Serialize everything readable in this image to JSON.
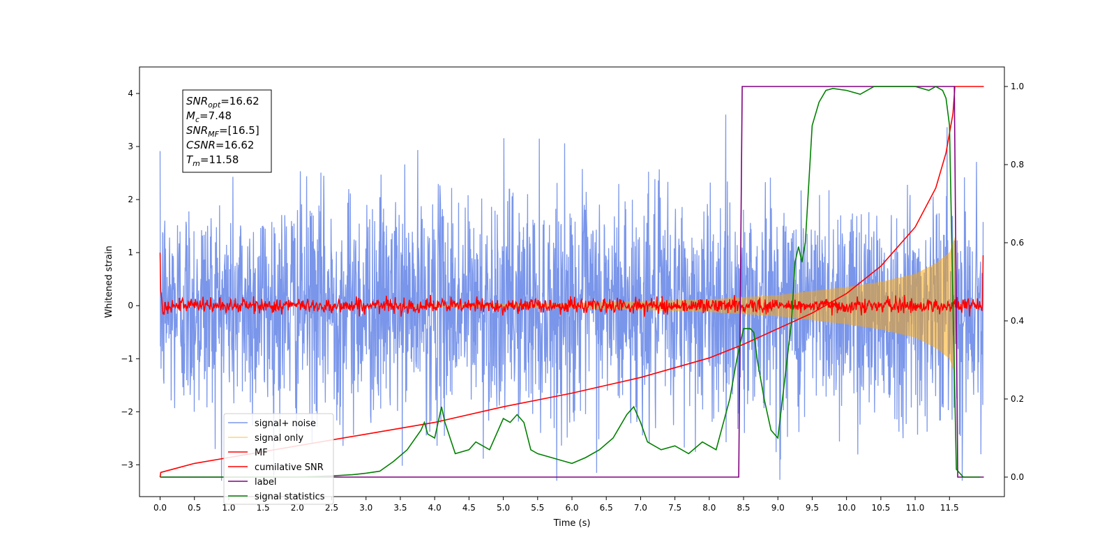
{
  "chart_data": {
    "type": "line",
    "xlabel": "Time (s)",
    "ylabel": "Whitened strain",
    "x_ticks": [
      "0.0",
      "0.5",
      "1.0",
      "1.5",
      "2.0",
      "2.5",
      "3.0",
      "3.5",
      "4.0",
      "4.5",
      "5.0",
      "5.5",
      "6.0",
      "6.5",
      "7.0",
      "7.5",
      "8.0",
      "8.5",
      "9.0",
      "9.5",
      "10.0",
      "10.5",
      "11.0",
      "11.5"
    ],
    "xlim": [
      -0.3,
      12.3
    ],
    "ylim_left": [
      -3.6,
      4.5
    ],
    "ylim_right": [
      -0.05,
      1.05
    ],
    "y_ticks_left": [
      -3,
      -2,
      -1,
      0,
      1,
      2,
      3,
      4
    ],
    "y_ticks_right": [
      0.0,
      0.2,
      0.4,
      0.6,
      0.8,
      1.0
    ],
    "y_tick_labels_left": [
      "−3",
      "−2",
      "−1",
      "0",
      "1",
      "2",
      "3",
      "4"
    ],
    "y_tick_labels_right": [
      "0.0",
      "0.2",
      "0.4",
      "0.6",
      "0.8",
      "1.0"
    ],
    "grid": false,
    "legend_position": "lower-left",
    "annotation": {
      "lines": [
        {
          "base": "SNR",
          "sub": "opt",
          "value": "=16.62"
        },
        {
          "base": "M",
          "sub": "c",
          "value": "=7.48"
        },
        {
          "base": "SNR",
          "sub": "MF",
          "value": "=[16.5]"
        },
        {
          "base": "CSNR",
          "sub": "",
          "value": "=16.62"
        },
        {
          "base": "T",
          "sub": "m",
          "value": "=11.58"
        }
      ]
    },
    "series": [
      {
        "name": "signal+ noise",
        "color": "#4169e1",
        "axis": "left",
        "kind": "noise",
        "t_range": [
          0.0,
          11.99
        ],
        "abs_peak_approx": 3.8
      },
      {
        "name": "signal only",
        "color": "#ffa500",
        "axis": "left",
        "kind": "chirp",
        "t_range": [
          0.0,
          11.58
        ],
        "envelope": {
          "t": [
            0.0,
            4.0,
            6.0,
            8.0,
            9.0,
            10.0,
            10.5,
            11.0,
            11.3,
            11.5,
            11.58
          ],
          "amp": [
            0.0,
            0.02,
            0.05,
            0.12,
            0.2,
            0.35,
            0.45,
            0.6,
            0.8,
            1.0,
            1.3
          ]
        }
      },
      {
        "name": "MF",
        "color": "#ff0000",
        "axis": "left",
        "kind": "mf",
        "t_range": [
          0.0,
          11.99
        ],
        "start_value": 1.0,
        "end_value": 0.95,
        "noise_amp": 0.07
      },
      {
        "name": "cumilative SNR",
        "color": "#ff0000",
        "axis": "right",
        "x": [
          0.0,
          0.01,
          0.5,
          1.0,
          2.0,
          3.0,
          4.0,
          5.0,
          6.0,
          7.0,
          7.5,
          8.0,
          8.5,
          9.0,
          9.5,
          10.0,
          10.5,
          11.0,
          11.3,
          11.45,
          11.55,
          11.58,
          12.0
        ],
        "y": [
          0.0,
          0.012,
          0.035,
          0.05,
          0.08,
          0.11,
          0.14,
          0.18,
          0.215,
          0.255,
          0.28,
          0.305,
          0.34,
          0.38,
          0.42,
          0.47,
          0.54,
          0.64,
          0.74,
          0.83,
          0.93,
          1.0,
          1.0
        ]
      },
      {
        "name": "label",
        "color": "#800080",
        "axis": "right",
        "x": [
          0.0,
          8.43,
          8.48,
          11.57,
          11.62,
          12.0
        ],
        "y": [
          0.0,
          0.0,
          1.0,
          1.0,
          0.0,
          0.0
        ]
      },
      {
        "name": "signal statistics",
        "color": "#008000",
        "axis": "right",
        "x": [
          0.0,
          0.5,
          1.0,
          1.5,
          2.0,
          2.5,
          2.8,
          3.0,
          3.2,
          3.4,
          3.6,
          3.8,
          3.85,
          3.9,
          4.0,
          4.1,
          4.15,
          4.3,
          4.5,
          4.6,
          4.8,
          5.0,
          5.1,
          5.2,
          5.3,
          5.4,
          5.5,
          5.7,
          5.9,
          6.0,
          6.2,
          6.4,
          6.6,
          6.8,
          6.9,
          7.0,
          7.1,
          7.3,
          7.5,
          7.7,
          7.9,
          8.1,
          8.3,
          8.4,
          8.5,
          8.6,
          8.65,
          8.7,
          8.8,
          8.9,
          9.0,
          9.1,
          9.2,
          9.25,
          9.3,
          9.35,
          9.4,
          9.5,
          9.6,
          9.7,
          9.8,
          10.0,
          10.2,
          10.3,
          10.4,
          10.6,
          10.8,
          11.0,
          11.2,
          11.3,
          11.4,
          11.45,
          11.5,
          11.55,
          11.6,
          11.7,
          11.95
        ],
        "y": [
          0.0,
          0.0,
          0.0,
          0.0,
          0.0,
          0.003,
          0.006,
          0.01,
          0.015,
          0.04,
          0.07,
          0.12,
          0.14,
          0.11,
          0.1,
          0.18,
          0.14,
          0.06,
          0.07,
          0.09,
          0.07,
          0.15,
          0.14,
          0.16,
          0.14,
          0.07,
          0.06,
          0.05,
          0.04,
          0.035,
          0.05,
          0.07,
          0.1,
          0.16,
          0.18,
          0.14,
          0.09,
          0.07,
          0.08,
          0.06,
          0.09,
          0.07,
          0.2,
          0.3,
          0.38,
          0.38,
          0.37,
          0.3,
          0.2,
          0.12,
          0.1,
          0.25,
          0.4,
          0.55,
          0.59,
          0.55,
          0.6,
          0.9,
          0.96,
          0.99,
          0.995,
          0.99,
          0.98,
          0.99,
          1.0,
          1.0,
          1.0,
          1.0,
          0.99,
          1.0,
          0.99,
          0.97,
          0.9,
          0.45,
          0.02,
          0.0,
          0.0
        ]
      }
    ]
  }
}
